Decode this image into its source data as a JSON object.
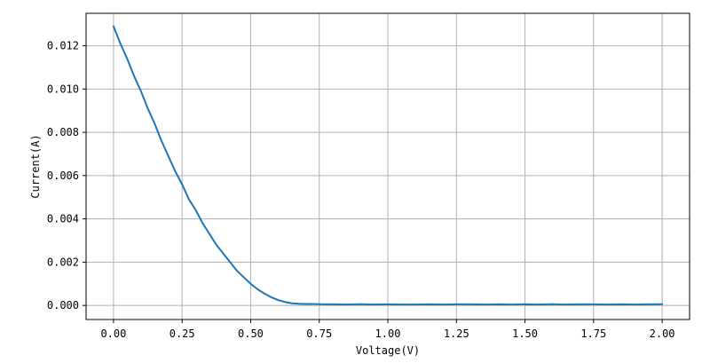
{
  "chart_data": {
    "type": "line",
    "title": "",
    "xlabel": "Voltage(V)",
    "ylabel": "Current(A)",
    "xlim": [
      -0.1,
      2.1
    ],
    "ylim": [
      -0.00065,
      0.0135
    ],
    "grid": true,
    "legend": "none",
    "xticks": [
      0.0,
      0.25,
      0.5,
      0.75,
      1.0,
      1.25,
      1.5,
      1.75,
      2.0
    ],
    "xtick_labels": [
      "0.00",
      "0.25",
      "0.50",
      "0.75",
      "1.00",
      "1.25",
      "1.50",
      "1.75",
      "2.00"
    ],
    "yticks": [
      0.0,
      0.002,
      0.004,
      0.006,
      0.008,
      0.01,
      0.012
    ],
    "ytick_labels": [
      "0.000",
      "0.002",
      "0.004",
      "0.006",
      "0.008",
      "0.010",
      "0.012"
    ],
    "colors": {
      "line": "#1f77b4",
      "grid": "#b0b0b0",
      "axes": "#000000"
    },
    "series": [
      {
        "x": [
          0.0,
          0.025,
          0.05,
          0.075,
          0.1,
          0.125,
          0.15,
          0.175,
          0.2,
          0.225,
          0.25,
          0.275,
          0.3,
          0.325,
          0.35,
          0.375,
          0.4,
          0.425,
          0.45,
          0.475,
          0.5,
          0.525,
          0.55,
          0.575,
          0.6,
          0.625,
          0.65,
          0.675,
          0.7,
          0.725,
          0.75,
          0.775,
          0.8,
          0.85,
          0.9,
          0.95,
          1.0,
          1.05,
          1.1,
          1.15,
          1.2,
          1.25,
          1.3,
          1.35,
          1.4,
          1.45,
          1.5,
          1.55,
          1.6,
          1.65,
          1.7,
          1.75,
          1.8,
          1.85,
          1.9,
          1.95,
          2.0
        ],
        "values": [
          0.0129,
          0.0121,
          0.0114,
          0.0106,
          0.0099,
          0.0091,
          0.0084,
          0.0076,
          0.0069,
          0.0062,
          0.0056,
          0.0049,
          0.0044,
          0.0038,
          0.0033,
          0.0028,
          0.0024,
          0.002,
          0.0016,
          0.0013,
          0.001,
          0.00075,
          0.00055,
          0.00038,
          0.00025,
          0.00016,
          0.0001,
          8e-05,
          7e-05,
          7e-05,
          6e-05,
          5e-05,
          5e-05,
          4e-05,
          6e-05,
          4e-05,
          5e-05,
          4e-05,
          4e-05,
          5e-05,
          4e-05,
          5e-05,
          5e-05,
          4e-05,
          5e-05,
          4e-05,
          5e-05,
          4e-05,
          6e-05,
          4e-05,
          5e-05,
          5e-05,
          4e-05,
          5e-05,
          4e-05,
          5e-05,
          6e-05
        ]
      }
    ]
  }
}
